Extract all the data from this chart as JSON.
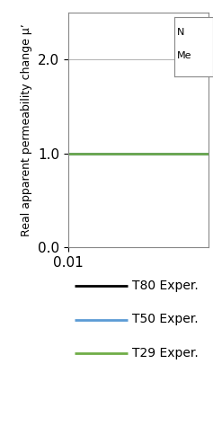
{
  "ylabel": "Real apparent permeability change μ’",
  "xlim": [
    0.01,
    100
  ],
  "ylim": [
    0.0,
    2.5
  ],
  "yticks": [
    0.0,
    1.0,
    2.0
  ],
  "ytick_labels": [
    "0.0",
    "1.0",
    "2.0"
  ],
  "lines": [
    {
      "label": "T80 Exper.",
      "color": "#000000",
      "y_value": 1.0,
      "linewidth": 1.8
    },
    {
      "label": "T50 Exper.",
      "color": "#5b9bd5",
      "y_value": 1.0,
      "linewidth": 1.8
    },
    {
      "label": "T29 Exper.",
      "color": "#70ad47",
      "y_value": 1.0,
      "linewidth": 1.8
    }
  ],
  "partial_legend_text1": "N",
  "partial_legend_text2": "Me",
  "background_color": "#ffffff",
  "grid_color": "#b0b0b0",
  "figsize": [
    2.37,
    4.74
  ],
  "dpi": 100,
  "bottom_legend": [
    {
      "label": "T80 Exper.",
      "color": "#000000"
    },
    {
      "label": "T50 Exper.",
      "color": "#5b9bd5"
    },
    {
      "label": "T29 Exper.",
      "color": "#70ad47"
    }
  ]
}
